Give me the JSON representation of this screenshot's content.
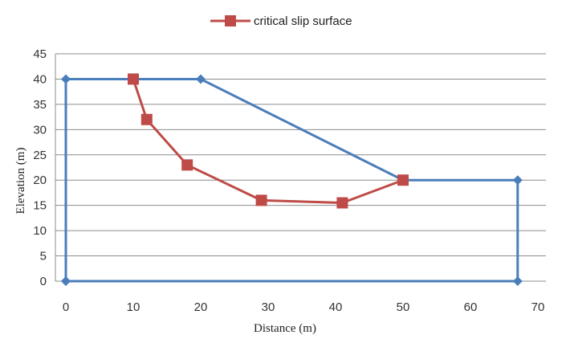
{
  "chart_data": {
    "type": "line",
    "title": "",
    "xlabel": "Distance (m)",
    "ylabel": "Elevation (m)",
    "xlim": [
      0,
      70
    ],
    "ylim": [
      0,
      45
    ],
    "x_ticks": [
      0,
      10,
      20,
      30,
      40,
      50,
      60,
      70
    ],
    "y_ticks": [
      0,
      5,
      10,
      15,
      20,
      25,
      30,
      35,
      40,
      45
    ],
    "grid": "horizontal",
    "legend_position": "top-center",
    "series": [
      {
        "color": "#4a7ebb",
        "marker": "diamond",
        "points": [
          {
            "x": 0,
            "y": 0
          },
          {
            "x": 0,
            "y": 40
          },
          {
            "x": 20,
            "y": 40
          },
          {
            "x": 50,
            "y": 20
          },
          {
            "x": 67,
            "y": 20
          },
          {
            "x": 67,
            "y": 0
          },
          {
            "x": 0,
            "y": 0
          }
        ]
      },
      {
        "name": "critical slip surface",
        "color": "#be4b48",
        "marker": "square",
        "points": [
          {
            "x": 10,
            "y": 40
          },
          {
            "x": 12,
            "y": 32
          },
          {
            "x": 18,
            "y": 23
          },
          {
            "x": 29,
            "y": 16
          },
          {
            "x": 41,
            "y": 15.5
          },
          {
            "x": 50,
            "y": 20
          }
        ]
      }
    ]
  }
}
